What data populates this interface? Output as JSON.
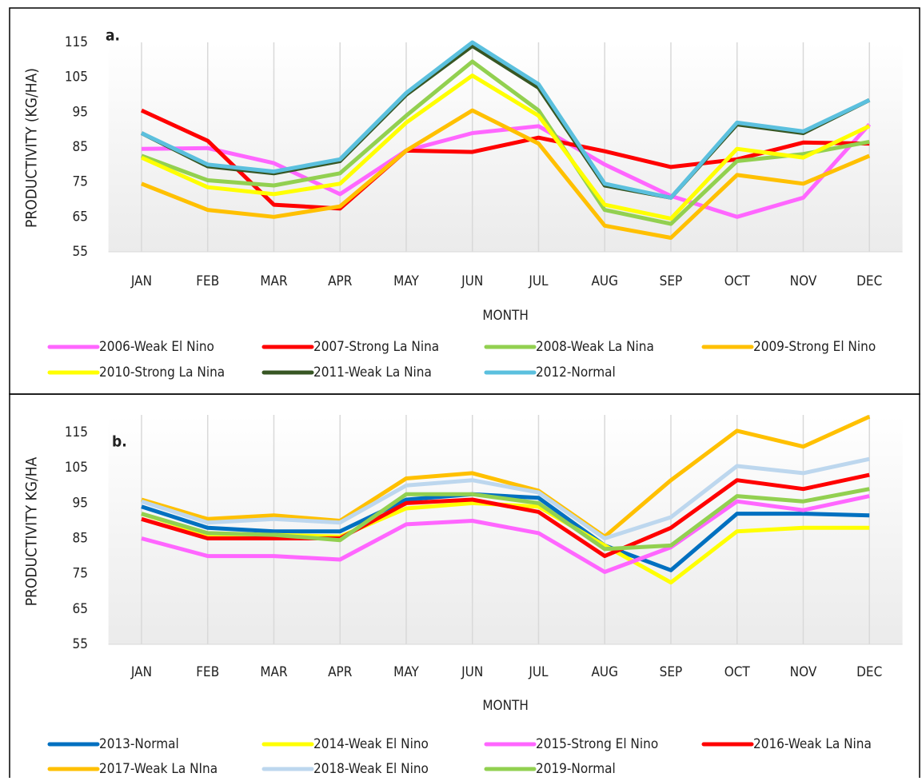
{
  "chart_data": [
    {
      "type": "line",
      "annotation": "a.",
      "x_label": "MONTH",
      "y_label": "PRODUCTIVITY (KG/HA)",
      "categories": [
        "JAN",
        "FEB",
        "MAR",
        "APR",
        "MAY",
        "JUN",
        "JUL",
        "AUG",
        "SEP",
        "OCT",
        "NOV",
        "DEC"
      ],
      "ylim": [
        55,
        115
      ],
      "yticks": [
        55,
        65,
        75,
        85,
        95,
        105,
        115
      ],
      "grid": true,
      "series": [
        {
          "name": "2006-Weak El Nino",
          "color": "#ff66ff",
          "values": [
            84.5,
            84.7,
            80.4,
            71.5,
            84,
            89,
            91,
            80,
            71,
            65,
            70.5,
            91.5
          ]
        },
        {
          "name": "2007-Strong La Nina",
          "color": "#ff0000",
          "values": [
            95.5,
            86.8,
            68.5,
            67.4,
            84,
            83.6,
            87.7,
            83.8,
            79.3,
            81.5,
            86.3,
            86
          ]
        },
        {
          "name": "2008-Weak La Nina",
          "color": "#92d050",
          "values": [
            82.5,
            75.5,
            74,
            77.5,
            94,
            109.5,
            95.5,
            67,
            63,
            81,
            83,
            86.5
          ]
        },
        {
          "name": "2009-Strong El Nino",
          "color": "#ffc000",
          "values": [
            74.5,
            67,
            65,
            68,
            84,
            95.5,
            86,
            62.5,
            59,
            77,
            74.5,
            82.5
          ]
        },
        {
          "name": "2010-Strong La Nina",
          "color": "#ffff00",
          "values": [
            82,
            73.5,
            71.5,
            74.5,
            92,
            105.5,
            94,
            68.5,
            64.5,
            84.5,
            82,
            91
          ]
        },
        {
          "name": "2011-Weak La Nina",
          "color": "#375623",
          "values": [
            89,
            79.5,
            77.5,
            81,
            100,
            114,
            102,
            74,
            70.5,
            91.5,
            89,
            98.5
          ]
        },
        {
          "name": "2012-Normal",
          "color": "#5bc0de",
          "values": [
            89,
            80,
            78,
            81.5,
            100.5,
            115,
            103,
            74.5,
            70.5,
            92,
            89.5,
            98.5
          ]
        }
      ]
    },
    {
      "type": "line",
      "annotation": "b.",
      "x_label": "MONTH",
      "y_label": "PRODUCTIVITY KG/HA",
      "categories": [
        "JAN",
        "FEB",
        "MAR",
        "APR",
        "MAY",
        "JUN",
        "JUL",
        "AUG",
        "SEP",
        "OCT",
        "NOV",
        "DEC"
      ],
      "ylim": [
        55,
        120
      ],
      "yticks": [
        55,
        65,
        75,
        85,
        95,
        105,
        115
      ],
      "grid": true,
      "series": [
        {
          "name": "2013-Normal",
          "color": "#0070c0",
          "values": [
            94,
            88,
            87,
            87,
            96,
            97.5,
            96.5,
            83,
            76,
            92,
            92,
            91.5
          ]
        },
        {
          "name": "2014-Weak El Nino",
          "color": "#ffff00",
          "values": [
            92,
            86,
            86,
            85.5,
            93.5,
            95,
            94,
            83,
            72.5,
            87,
            88,
            88
          ]
        },
        {
          "name": "2015-Strong El Nino",
          "color": "#ff66ff",
          "values": [
            85,
            80,
            80,
            79,
            89,
            90,
            86.5,
            75.5,
            82.5,
            95.5,
            93,
            97
          ]
        },
        {
          "name": "2016-Weak La Nina",
          "color": "#ff0000",
          "values": [
            90.5,
            85,
            85,
            85,
            95,
            96,
            92.5,
            80,
            88,
            101.5,
            99,
            103
          ]
        },
        {
          "name": "2017-Weak La NIna",
          "color": "#ffc000",
          "values": [
            96,
            90.5,
            91.5,
            90,
            102,
            103.5,
            98.5,
            85.5,
            101.5,
            115.5,
            111,
            119.5
          ]
        },
        {
          "name": "2018-Weak El Nino",
          "color": "#bdd7ee",
          "values": [
            95.5,
            89.5,
            90.5,
            89.5,
            100,
            101.5,
            98,
            85,
            91,
            105.5,
            103.5,
            107.5
          ]
        },
        {
          "name": "2019-Normal",
          "color": "#92d050",
          "values": [
            92,
            86.5,
            86,
            84.5,
            97.5,
            97.5,
            95,
            82,
            83,
            97,
            95.5,
            99
          ]
        }
      ]
    }
  ]
}
